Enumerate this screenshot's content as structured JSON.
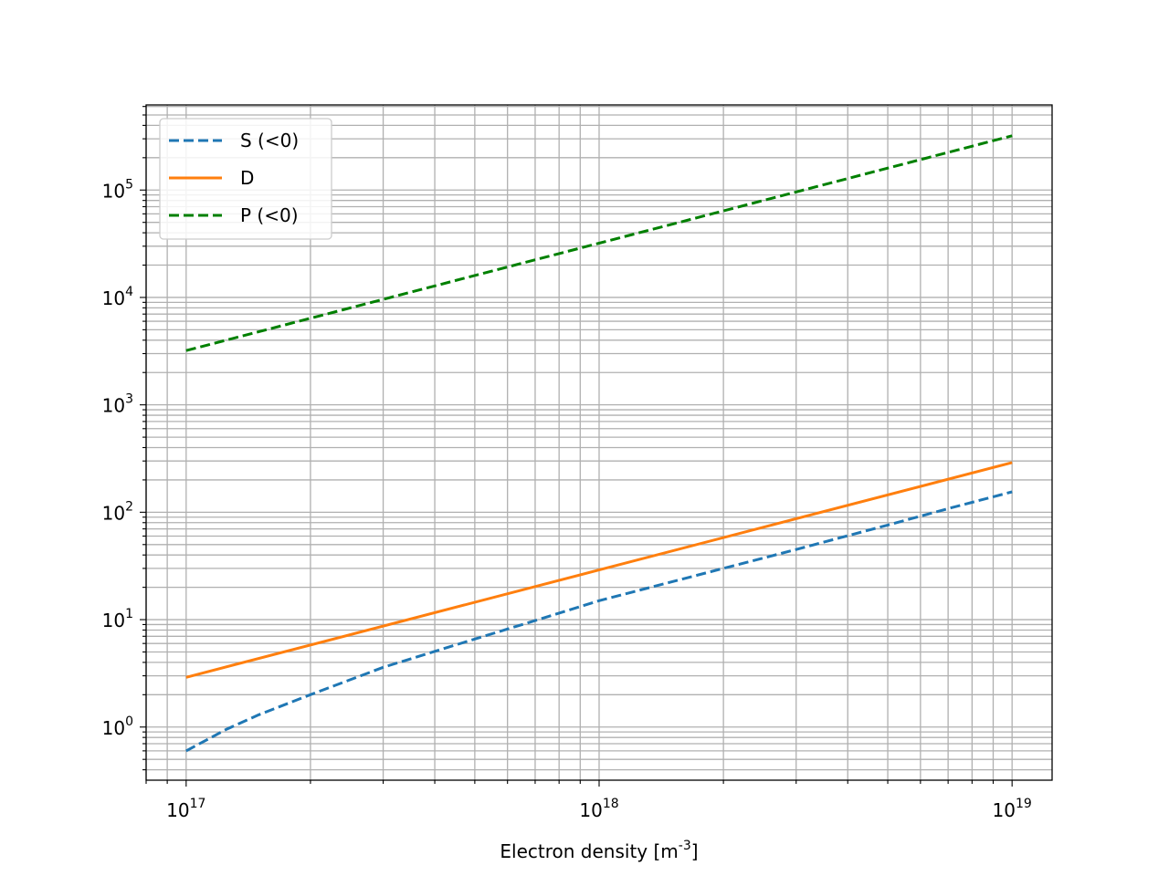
{
  "chart_data": {
    "type": "line",
    "title": "",
    "xlabel": "Electron density [m^-3]",
    "ylabel": "",
    "xscale": "log",
    "yscale": "log",
    "xlim": [
      8e+16,
      1.25e+19
    ],
    "ylim": [
      0.32,
      620000
    ],
    "grid": true,
    "legend_position": "upper-left",
    "x_tick_labels": [
      {
        "value": 1e+17,
        "base": "10",
        "exp": "17"
      },
      {
        "value": 1e+18,
        "base": "10",
        "exp": "18"
      },
      {
        "value": 1e+19,
        "base": "10",
        "exp": "19"
      }
    ],
    "y_tick_labels": [
      {
        "value": 1,
        "base": "10",
        "exp": "0"
      },
      {
        "value": 10,
        "base": "10",
        "exp": "1"
      },
      {
        "value": 100,
        "base": "10",
        "exp": "2"
      },
      {
        "value": 1000,
        "base": "10",
        "exp": "3"
      },
      {
        "value": 10000,
        "base": "10",
        "exp": "4"
      },
      {
        "value": 100000,
        "base": "10",
        "exp": "5"
      }
    ],
    "series": [
      {
        "name": "S (<0)",
        "color": "#1f77b4",
        "style": "dashed",
        "x": [
          1e+17,
          1.25e+17,
          1.5e+17,
          2e+17,
          3e+17,
          5e+17,
          7e+17,
          1e+18,
          2e+18,
          3e+18,
          5e+18,
          7e+18,
          1e+19
        ],
        "y": [
          0.6,
          0.95,
          1.3,
          2.0,
          3.6,
          6.6,
          9.8,
          15,
          30,
          45,
          76,
          108,
          155
        ]
      },
      {
        "name": "D",
        "color": "#ff7f0e",
        "style": "solid",
        "x": [
          1e+17,
          1e+18,
          1e+19
        ],
        "y": [
          2.9,
          29,
          290
        ]
      },
      {
        "name": "P (<0)",
        "color": "#008000",
        "style": "dashed",
        "x": [
          1e+17,
          1e+18,
          1e+19
        ],
        "y": [
          3200,
          32000,
          320000
        ]
      }
    ]
  }
}
